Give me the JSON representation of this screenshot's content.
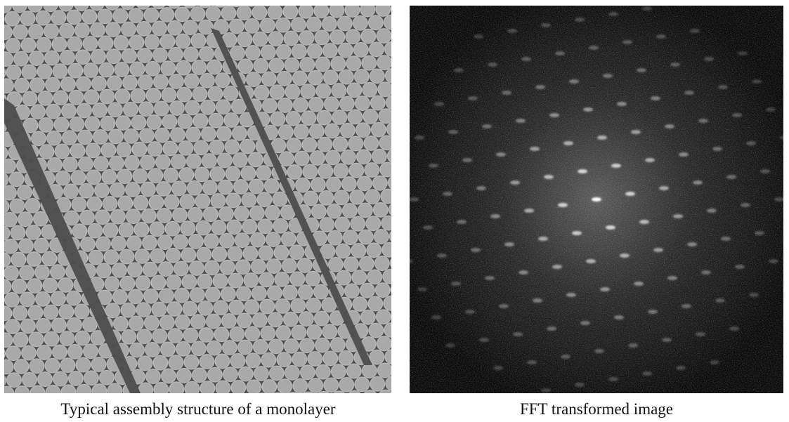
{
  "figures": [
    {
      "caption": "Typical assembly structure of a monolayer"
    },
    {
      "caption": "FFT transformed image"
    }
  ]
}
